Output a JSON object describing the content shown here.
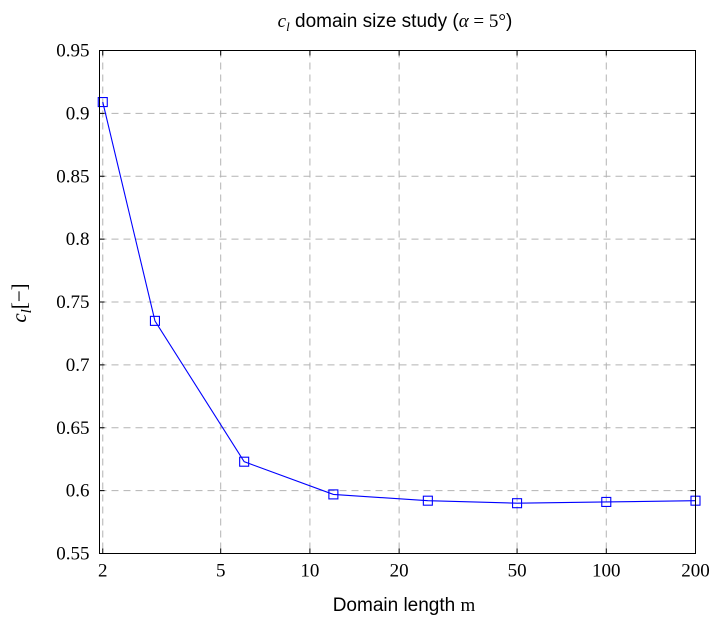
{
  "chart_data": {
    "type": "line",
    "title": {
      "var": "c",
      "sub": "l",
      "text": " domain size study (",
      "alpha": "α",
      "eq": " = 5°",
      "close": ")"
    },
    "xlabel": {
      "text": "Domain length ",
      "unit": "m"
    },
    "ylabel": {
      "var": "c",
      "sub": "l",
      "unit": "[−]"
    },
    "xscale": "log",
    "xlim": [
      1.95,
      200
    ],
    "ylim": [
      0.55,
      0.95
    ],
    "xticks": [
      2,
      5,
      10,
      20,
      50,
      100,
      200
    ],
    "xtick_labels": [
      "2",
      "5",
      "10",
      "20",
      "50",
      "100",
      "200"
    ],
    "yticks": [
      0.55,
      0.6,
      0.65,
      0.7,
      0.75,
      0.8,
      0.85,
      0.9,
      0.95
    ],
    "ytick_labels": [
      "0.55",
      "0.6",
      "0.65",
      "0.7",
      "0.75",
      "0.8",
      "0.85",
      "0.9",
      "0.95"
    ],
    "grid": true,
    "marker": "square",
    "color": "#0000ff",
    "series": [
      {
        "x": [
          2,
          3,
          6,
          12,
          25,
          50,
          100,
          200
        ],
        "y": [
          0.909,
          0.735,
          0.623,
          0.597,
          0.592,
          0.59,
          0.591,
          0.592
        ]
      }
    ]
  }
}
